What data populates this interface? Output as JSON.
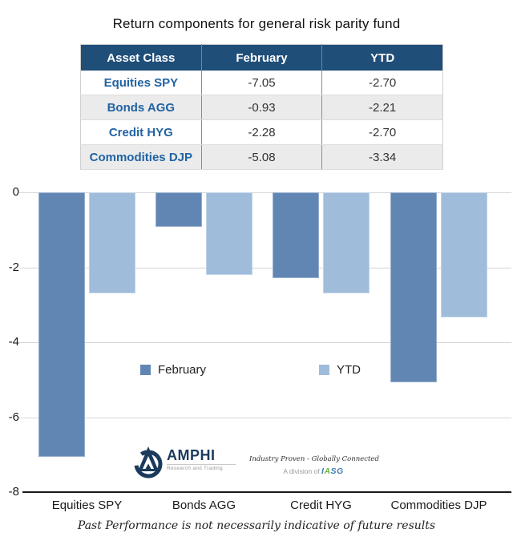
{
  "title": "Return components for general risk parity fund",
  "table": {
    "headers": [
      "Asset Class",
      "February",
      "YTD"
    ],
    "rows": [
      [
        "Equities SPY",
        "-7.05",
        "-2.70"
      ],
      [
        "Bonds AGG",
        "-0.93",
        "-2.21"
      ],
      [
        "Credit HYG",
        "-2.28",
        "-2.70"
      ],
      [
        "Commodities DJP",
        "-5.08",
        "-3.34"
      ]
    ],
    "header_bg": "#1F4E79",
    "header_text_color": "#FFFFFF",
    "asset_text_color": "#2163A3",
    "alt_row_bg": "#EBEBEB"
  },
  "chart_data": {
    "type": "bar",
    "categories": [
      "Equities SPY",
      "Bonds AGG",
      "Credit HYG",
      "Commodities DJP"
    ],
    "series": [
      {
        "name": "February",
        "color": "#6286B4",
        "values": [
          -7.05,
          -0.93,
          -2.28,
          -5.08
        ]
      },
      {
        "name": "YTD",
        "color": "#A0BCDB",
        "values": [
          -2.7,
          -2.21,
          -2.7,
          -3.34
        ]
      }
    ],
    "ylim": [
      -8,
      0
    ],
    "yticks": [
      0,
      -2,
      -4,
      -6,
      -8
    ],
    "grid": true,
    "legend_position": "inside-middle",
    "gridline_color": "#D6D6D6",
    "axis_color": "#1A1A1A"
  },
  "brand": {
    "name": "AMPHI",
    "subtitle": "Research and Trading",
    "tagline": "Industry Proven - Globally Connected",
    "division_prefix": "A division of",
    "division_name": "IASG",
    "navy": "#1B3A5C",
    "iasg_green": "#6CB33F",
    "iasg_blue": "#3E7CB8"
  },
  "footer": "Past Performance is not necessarily indicative of future results"
}
